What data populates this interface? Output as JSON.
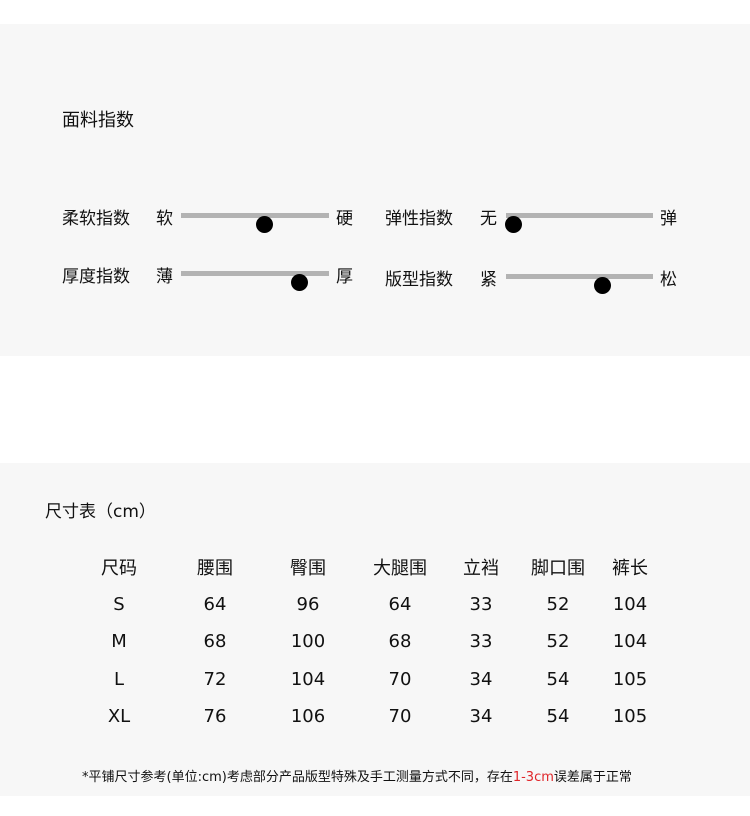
{
  "fabric": {
    "title": "面料指数",
    "sliders": [
      {
        "label": "柔软指数",
        "low": "软",
        "high": "硬",
        "value": 0.56
      },
      {
        "label": "弹性指数",
        "low": "无",
        "high": "弹",
        "value": 0.05
      },
      {
        "label": "厚度指数",
        "low": "薄",
        "high": "厚",
        "value": 0.8
      },
      {
        "label": "版型指数",
        "low": "紧",
        "high": "松",
        "value": 0.65
      }
    ]
  },
  "size_table": {
    "title": "尺寸表（cm）",
    "headers": [
      "尺码",
      "腰围",
      "臀围",
      "大腿围",
      "立裆",
      "脚口围",
      "裤长"
    ],
    "rows": [
      [
        "S",
        "64",
        "96",
        "64",
        "33",
        "52",
        "104"
      ],
      [
        "M",
        "68",
        "100",
        "68",
        "33",
        "52",
        "104"
      ],
      [
        "L",
        "72",
        "104",
        "70",
        "34",
        "54",
        "105"
      ],
      [
        "XL",
        "76",
        "106",
        "70",
        "34",
        "54",
        "105"
      ]
    ]
  },
  "note": {
    "before": "*平铺尺寸参考(单位:cm)考虑部分产品版型特殊及手工测量方式不同，存在",
    "highlight": "1-3cm",
    "after": "误差属于正常",
    "highlight_color": "#e0262a"
  }
}
